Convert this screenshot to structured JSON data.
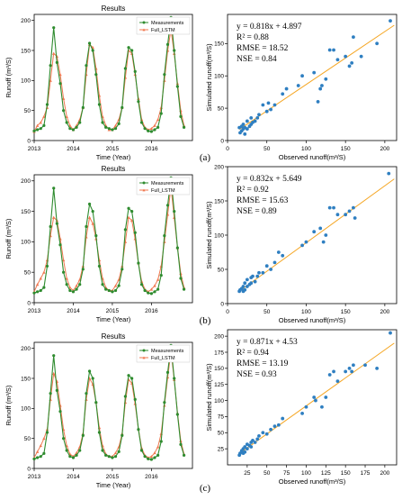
{
  "panel_labels": [
    "(a)",
    "(b)",
    "(c)"
  ],
  "legend_entries": [
    "Measurements",
    "Full_LSTM"
  ],
  "colors": {
    "measurements": "#2e8b2e",
    "full_lstm": "#f07850",
    "scatter": "#2f7fc1",
    "fit_line": "#f5a623"
  },
  "chart_data": [
    {
      "type": "line",
      "title": "Results",
      "xlabel": "Time (Year)",
      "ylabel": "Runoff (m³/S)",
      "xlim": [
        2013,
        2017.05
      ],
      "ylim": [
        0,
        210
      ],
      "xticks": [
        2013,
        2014,
        2015,
        2016
      ],
      "yticks": [
        0,
        50,
        100,
        150,
        200
      ],
      "legend": "top-right",
      "x": [
        2013.0,
        2013.083,
        2013.167,
        2013.25,
        2013.333,
        2013.417,
        2013.5,
        2013.583,
        2013.667,
        2013.75,
        2013.833,
        2013.917,
        2014.0,
        2014.083,
        2014.167,
        2014.25,
        2014.333,
        2014.417,
        2014.5,
        2014.583,
        2014.667,
        2014.75,
        2014.833,
        2014.917,
        2015.0,
        2015.083,
        2015.167,
        2015.25,
        2015.333,
        2015.417,
        2015.5,
        2015.583,
        2015.667,
        2015.75,
        2015.833,
        2015.917,
        2016.0,
        2016.083,
        2016.167,
        2016.25,
        2016.333,
        2016.417,
        2016.5,
        2016.583,
        2016.667,
        2016.75,
        2016.833
      ],
      "series": [
        {
          "name": "Measurements",
          "values": [
            16,
            18,
            20,
            25,
            60,
            125,
            188,
            130,
            95,
            50,
            30,
            20,
            18,
            22,
            30,
            55,
            125,
            162,
            150,
            110,
            60,
            30,
            22,
            20,
            18,
            20,
            28,
            55,
            120,
            155,
            150,
            115,
            65,
            30,
            20,
            16,
            15,
            18,
            22,
            45,
            110,
            160,
            205,
            150,
            90,
            40,
            22
          ]
        },
        {
          "name": "Full_LSTM",
          "values": [
            15,
            25,
            30,
            40,
            55,
            100,
            145,
            140,
            110,
            70,
            40,
            25,
            18,
            25,
            35,
            55,
            110,
            160,
            155,
            120,
            75,
            40,
            25,
            18,
            18,
            25,
            35,
            55,
            105,
            150,
            145,
            110,
            70,
            35,
            22,
            18,
            20,
            25,
            35,
            55,
            100,
            150,
            185,
            145,
            95,
            50,
            25
          ]
        }
      ]
    },
    {
      "type": "scatter",
      "xlabel": "Observed runoff(m³/S)",
      "ylabel": "Simulated runoff(m³/S)",
      "xlim": [
        0,
        215
      ],
      "ylim": [
        0,
        195
      ],
      "xticks": [
        0,
        50,
        100,
        150,
        200
      ],
      "yticks": [
        0,
        50,
        100,
        150
      ],
      "stats": {
        "equation": "y = 0.818x + 4.897",
        "r2": "R² = 0.88",
        "rmse": "RMSE = 18.52",
        "nse": "NSE = 0.84"
      },
      "fit": {
        "slope": 0.818,
        "intercept": 4.897
      },
      "points": [
        [
          15,
          20
        ],
        [
          16,
          12
        ],
        [
          18,
          15
        ],
        [
          18,
          22
        ],
        [
          20,
          18
        ],
        [
          20,
          25
        ],
        [
          22,
          10
        ],
        [
          22,
          20
        ],
        [
          25,
          18
        ],
        [
          25,
          30
        ],
        [
          28,
          22
        ],
        [
          30,
          25
        ],
        [
          30,
          35
        ],
        [
          32,
          28
        ],
        [
          35,
          30
        ],
        [
          38,
          35
        ],
        [
          40,
          40
        ],
        [
          45,
          55
        ],
        [
          50,
          45
        ],
        [
          52,
          58
        ],
        [
          55,
          48
        ],
        [
          60,
          55
        ],
        [
          70,
          72
        ],
        [
          75,
          80
        ],
        [
          90,
          85
        ],
        [
          95,
          100
        ],
        [
          110,
          105
        ],
        [
          115,
          60
        ],
        [
          118,
          80
        ],
        [
          120,
          85
        ],
        [
          125,
          95
        ],
        [
          130,
          140
        ],
        [
          135,
          140
        ],
        [
          140,
          125
        ],
        [
          150,
          130
        ],
        [
          155,
          115
        ],
        [
          158,
          120
        ],
        [
          160,
          160
        ],
        [
          170,
          130
        ],
        [
          190,
          150
        ],
        [
          207,
          185
        ]
      ]
    },
    {
      "type": "line",
      "title": "Results",
      "xlabel": "Time (Year)",
      "ylabel": "Runoff (m³/S)",
      "xlim": [
        2013,
        2017.05
      ],
      "ylim": [
        0,
        210
      ],
      "xticks": [
        2013,
        2014,
        2015,
        2016
      ],
      "yticks": [
        0,
        50,
        100,
        150,
        200
      ],
      "legend": "top-right",
      "x": [
        2013.0,
        2013.083,
        2013.167,
        2013.25,
        2013.333,
        2013.417,
        2013.5,
        2013.583,
        2013.667,
        2013.75,
        2013.833,
        2013.917,
        2014.0,
        2014.083,
        2014.167,
        2014.25,
        2014.333,
        2014.417,
        2014.5,
        2014.583,
        2014.667,
        2014.75,
        2014.833,
        2014.917,
        2015.0,
        2015.083,
        2015.167,
        2015.25,
        2015.333,
        2015.417,
        2015.5,
        2015.583,
        2015.667,
        2015.75,
        2015.833,
        2015.917,
        2016.0,
        2016.083,
        2016.167,
        2016.25,
        2016.333,
        2016.417,
        2016.5,
        2016.583,
        2016.667,
        2016.75,
        2016.833
      ],
      "series": [
        {
          "name": "Measurements",
          "values": [
            16,
            18,
            20,
            25,
            60,
            125,
            188,
            130,
            95,
            50,
            30,
            20,
            18,
            22,
            30,
            55,
            125,
            162,
            150,
            110,
            60,
            30,
            22,
            20,
            18,
            20,
            28,
            55,
            120,
            155,
            150,
            115,
            65,
            30,
            20,
            16,
            15,
            18,
            22,
            45,
            110,
            160,
            205,
            150,
            90,
            40,
            22
          ]
        },
        {
          "name": "Full_LSTM",
          "values": [
            18,
            30,
            40,
            50,
            70,
            110,
            140,
            135,
            105,
            70,
            40,
            25,
            20,
            28,
            38,
            60,
            108,
            140,
            130,
            105,
            70,
            40,
            25,
            20,
            20,
            28,
            38,
            60,
            100,
            140,
            135,
            105,
            65,
            35,
            22,
            18,
            22,
            28,
            38,
            60,
            100,
            145,
            190,
            140,
            90,
            48,
            25
          ]
        }
      ]
    },
    {
      "type": "scatter",
      "xlabel": "Observed runoff(m³/S)",
      "ylabel": "Simulated runoff(m³/S)",
      "xlim": [
        0,
        215
      ],
      "ylim": [
        0,
        200
      ],
      "xticks": [
        0,
        50,
        100,
        150,
        200
      ],
      "yticks": [
        0,
        50,
        100,
        150,
        200
      ],
      "stats": {
        "equation": "y = 0.832x + 5.649",
        "r2": "R² = 0.92",
        "rmse": "RMSE = 15.63",
        "nse": "NSE = 0.89"
      },
      "fit": {
        "slope": 0.832,
        "intercept": 5.649
      },
      "points": [
        [
          15,
          18
        ],
        [
          16,
          20
        ],
        [
          18,
          22
        ],
        [
          20,
          18
        ],
        [
          20,
          25
        ],
        [
          22,
          20
        ],
        [
          22,
          30
        ],
        [
          25,
          25
        ],
        [
          25,
          35
        ],
        [
          28,
          28
        ],
        [
          30,
          30
        ],
        [
          30,
          38
        ],
        [
          32,
          40
        ],
        [
          35,
          32
        ],
        [
          38,
          40
        ],
        [
          40,
          45
        ],
        [
          45,
          45
        ],
        [
          50,
          55
        ],
        [
          55,
          50
        ],
        [
          60,
          60
        ],
        [
          65,
          75
        ],
        [
          70,
          70
        ],
        [
          95,
          85
        ],
        [
          100,
          90
        ],
        [
          110,
          105
        ],
        [
          118,
          110
        ],
        [
          122,
          90
        ],
        [
          125,
          100
        ],
        [
          130,
          140
        ],
        [
          135,
          140
        ],
        [
          140,
          130
        ],
        [
          150,
          130
        ],
        [
          155,
          135
        ],
        [
          160,
          140
        ],
        [
          162,
          125
        ],
        [
          205,
          190
        ]
      ]
    },
    {
      "type": "line",
      "title": "Results",
      "xlabel": "Time (Year)",
      "ylabel": "Runoff (m³/S)",
      "xlim": [
        2013,
        2017.05
      ],
      "ylim": [
        0,
        210
      ],
      "xticks": [
        2013,
        2014,
        2015,
        2016
      ],
      "yticks": [
        0,
        50,
        100,
        150,
        200
      ],
      "legend": "top-right",
      "x": [
        2013.0,
        2013.083,
        2013.167,
        2013.25,
        2013.333,
        2013.417,
        2013.5,
        2013.583,
        2013.667,
        2013.75,
        2013.833,
        2013.917,
        2014.0,
        2014.083,
        2014.167,
        2014.25,
        2014.333,
        2014.417,
        2014.5,
        2014.583,
        2014.667,
        2014.75,
        2014.833,
        2014.917,
        2015.0,
        2015.083,
        2015.167,
        2015.25,
        2015.333,
        2015.417,
        2015.5,
        2015.583,
        2015.667,
        2015.75,
        2015.833,
        2015.917,
        2016.0,
        2016.083,
        2016.167,
        2016.25,
        2016.333,
        2016.417,
        2016.5,
        2016.583,
        2016.667,
        2016.75,
        2016.833
      ],
      "series": [
        {
          "name": "Measurements",
          "values": [
            16,
            18,
            20,
            25,
            60,
            125,
            188,
            130,
            95,
            50,
            30,
            20,
            18,
            22,
            30,
            55,
            125,
            162,
            150,
            110,
            60,
            30,
            22,
            20,
            18,
            20,
            28,
            55,
            120,
            155,
            150,
            115,
            65,
            30,
            20,
            16,
            15,
            18,
            22,
            45,
            110,
            160,
            205,
            150,
            90,
            40,
            22
          ]
        },
        {
          "name": "Full_LSTM",
          "values": [
            18,
            28,
            38,
            50,
            65,
            115,
            158,
            145,
            105,
            65,
            38,
            24,
            20,
            26,
            36,
            58,
            115,
            150,
            140,
            110,
            68,
            38,
            24,
            20,
            20,
            26,
            36,
            58,
            110,
            148,
            142,
            108,
            66,
            34,
            22,
            18,
            20,
            26,
            36,
            58,
            105,
            152,
            195,
            148,
            92,
            46,
            24
          ]
        }
      ]
    },
    {
      "type": "scatter",
      "xlabel": "Observed runoff(m³/S)",
      "ylabel": "Simulated runoff(m³/S)",
      "xlim": [
        0,
        215
      ],
      "ylim": [
        0,
        210
      ],
      "xticks": [
        25,
        50,
        75,
        100,
        125,
        150,
        175,
        200
      ],
      "yticks": [
        25,
        50,
        75,
        100,
        125,
        150,
        175,
        200
      ],
      "stats": {
        "equation": "y = 0.871x + 4.53",
        "r2": "R² = 0.94",
        "rmse": "RMSE = 13.19",
        "nse": "NSE = 0.93"
      },
      "fit": {
        "slope": 0.871,
        "intercept": 4.53
      },
      "points": [
        [
          15,
          15
        ],
        [
          16,
          18
        ],
        [
          18,
          20
        ],
        [
          18,
          22
        ],
        [
          20,
          18
        ],
        [
          20,
          25
        ],
        [
          22,
          20
        ],
        [
          22,
          28
        ],
        [
          25,
          25
        ],
        [
          25,
          32
        ],
        [
          28,
          30
        ],
        [
          30,
          28
        ],
        [
          30,
          35
        ],
        [
          32,
          38
        ],
        [
          35,
          35
        ],
        [
          38,
          40
        ],
        [
          40,
          45
        ],
        [
          45,
          50
        ],
        [
          50,
          48
        ],
        [
          55,
          55
        ],
        [
          60,
          60
        ],
        [
          65,
          62
        ],
        [
          70,
          72
        ],
        [
          95,
          80
        ],
        [
          100,
          90
        ],
        [
          110,
          105
        ],
        [
          112,
          100
        ],
        [
          120,
          90
        ],
        [
          125,
          105
        ],
        [
          130,
          140
        ],
        [
          135,
          145
        ],
        [
          140,
          130
        ],
        [
          150,
          145
        ],
        [
          155,
          150
        ],
        [
          158,
          145
        ],
        [
          160,
          155
        ],
        [
          175,
          155
        ],
        [
          190,
          150
        ],
        [
          207,
          205
        ]
      ]
    }
  ]
}
